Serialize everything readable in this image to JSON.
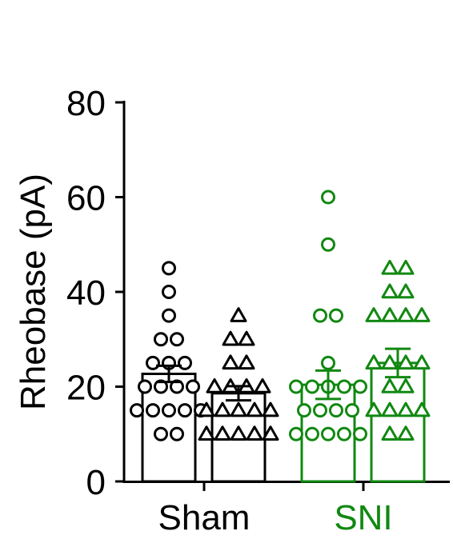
{
  "chart_data": {
    "type": "bar",
    "ylabel": "Rheobase (pA)",
    "ylim": [
      0,
      80
    ],
    "yticks": [
      0,
      20,
      40,
      60,
      80
    ],
    "groups": [
      {
        "label": "Sham",
        "color": "#000000"
      },
      {
        "label": "SNI",
        "color": "#118811"
      }
    ],
    "bars": [
      {
        "group": 0,
        "slot": 0,
        "marker": "circle",
        "mean": 22.7,
        "sem": 1.7,
        "color": "#000000",
        "points": [
          45,
          40,
          35,
          30,
          30,
          25,
          25,
          25,
          20,
          20,
          20,
          20,
          15,
          15,
          15,
          15,
          15,
          10,
          10
        ]
      },
      {
        "group": 0,
        "slot": 1,
        "marker": "triangle",
        "mean": 18.6,
        "sem": 1.5,
        "color": "#000000",
        "points": [
          35,
          30,
          30,
          25,
          25,
          20,
          20,
          20,
          20,
          15,
          15,
          15,
          15,
          15,
          10,
          10,
          10,
          10,
          10
        ]
      },
      {
        "group": 1,
        "slot": 0,
        "marker": "circle",
        "mean": 20.4,
        "sem": 3.0,
        "color": "#118811",
        "points": [
          60,
          50,
          35,
          35,
          25,
          20,
          20,
          20,
          20,
          20,
          15,
          15,
          15,
          15,
          10,
          10,
          10,
          10,
          10
        ]
      },
      {
        "group": 1,
        "slot": 1,
        "marker": "triangle",
        "mean": 25.0,
        "sem": 3.0,
        "color": "#118811",
        "points": [
          45,
          45,
          40,
          40,
          35,
          35,
          35,
          35,
          25,
          25,
          25,
          25,
          20,
          20,
          15,
          15,
          15,
          15,
          10,
          10
        ]
      }
    ]
  }
}
